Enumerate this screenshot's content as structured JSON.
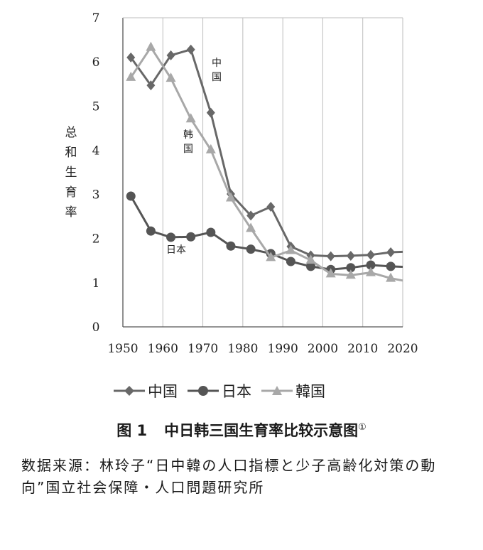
{
  "chart_data": {
    "type": "line",
    "ylabel": "总和生育率",
    "x_ticks": [
      "1950",
      "1960",
      "1970",
      "1980",
      "1990",
      "2000",
      "2010",
      "2020"
    ],
    "y_ticks": [
      "0",
      "1",
      "2",
      "3",
      "4",
      "5",
      "6",
      "7"
    ],
    "xlim": [
      1950,
      2020
    ],
    "ylim": [
      0,
      7
    ],
    "grid": "vertical",
    "legend_position": "bottom",
    "series": [
      {
        "name": "中国",
        "annotation": "中国",
        "color": "#686868",
        "marker": "diamond",
        "x": [
          1952,
          1957,
          1962,
          1967,
          1972,
          1977,
          1982,
          1987,
          1992,
          1997,
          2002,
          2007,
          2012,
          2017,
          2020
        ],
        "y": [
          6.1,
          5.47,
          6.15,
          6.28,
          4.85,
          3.01,
          2.52,
          2.72,
          1.82,
          1.62,
          1.6,
          1.61,
          1.63,
          1.69,
          1.7
        ]
      },
      {
        "name": "日本",
        "annotation": "日本",
        "color": "#555555",
        "marker": "circle",
        "x": [
          1952,
          1957,
          1962,
          1967,
          1972,
          1977,
          1982,
          1987,
          1992,
          1997,
          2002,
          2007,
          2012,
          2017,
          2020
        ],
        "y": [
          2.96,
          2.17,
          2.03,
          2.04,
          2.14,
          1.83,
          1.76,
          1.66,
          1.48,
          1.37,
          1.3,
          1.34,
          1.4,
          1.37,
          1.36
        ]
      },
      {
        "name": "韓国",
        "annotation": "韩国",
        "color": "#a8a8a8",
        "marker": "triangle",
        "x": [
          1952,
          1957,
          1962,
          1967,
          1972,
          1977,
          1982,
          1987,
          1992,
          1997,
          2002,
          2007,
          2012,
          2017,
          2020
        ],
        "y": [
          5.65,
          6.33,
          5.63,
          4.71,
          4.01,
          2.92,
          2.23,
          1.57,
          1.73,
          1.51,
          1.2,
          1.17,
          1.23,
          1.1,
          1.05
        ]
      }
    ]
  },
  "caption": {
    "number": "图 1",
    "title": "中日韩三国生育率比较示意图",
    "footnote": "①"
  },
  "source": "数据来源：林玲子“日中韓の人口指標と少子高齢化対策の動向”国立社会保障・人口問題研究所"
}
